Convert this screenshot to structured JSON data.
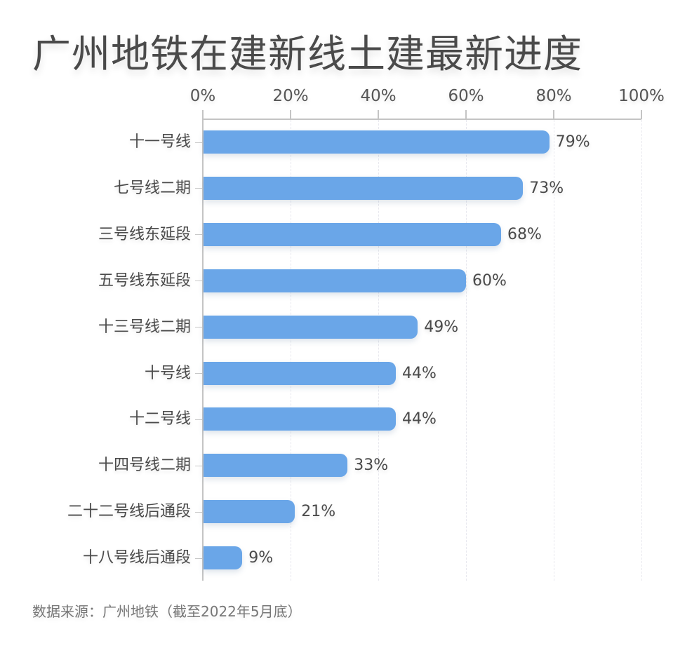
{
  "title": "广州地铁在建新线土建最新进度",
  "source": "数据来源：广州地铁（截至2022年5月底）",
  "colors": {
    "bar": "#6aa6e8",
    "text": "#4a4a4a",
    "axis": "#c4c4c4"
  },
  "chart_data": {
    "type": "bar",
    "orientation": "horizontal",
    "title": "广州地铁在建新线土建最新进度",
    "xlabel": "",
    "ylabel": "",
    "xlim": [
      0,
      100
    ],
    "x_ticks": [
      "0%",
      "20%",
      "40%",
      "60%",
      "80%",
      "100%"
    ],
    "x_axis_position": "top",
    "grid": "vertical dashed",
    "categories": [
      "十一号线",
      "七号线二期",
      "三号线东延段",
      "五号线东延段",
      "十三号线二期",
      "十号线",
      "十二号线",
      "十四号线二期",
      "二十二号线后通段",
      "十八号线后通段"
    ],
    "values": [
      79,
      73,
      68,
      60,
      49,
      44,
      44,
      33,
      21,
      9
    ],
    "value_labels": [
      "79%",
      "73%",
      "68%",
      "60%",
      "49%",
      "44%",
      "44%",
      "33%",
      "21%",
      "9%"
    ],
    "footnote": "数据来源：广州地铁（截至2022年5月底）"
  }
}
